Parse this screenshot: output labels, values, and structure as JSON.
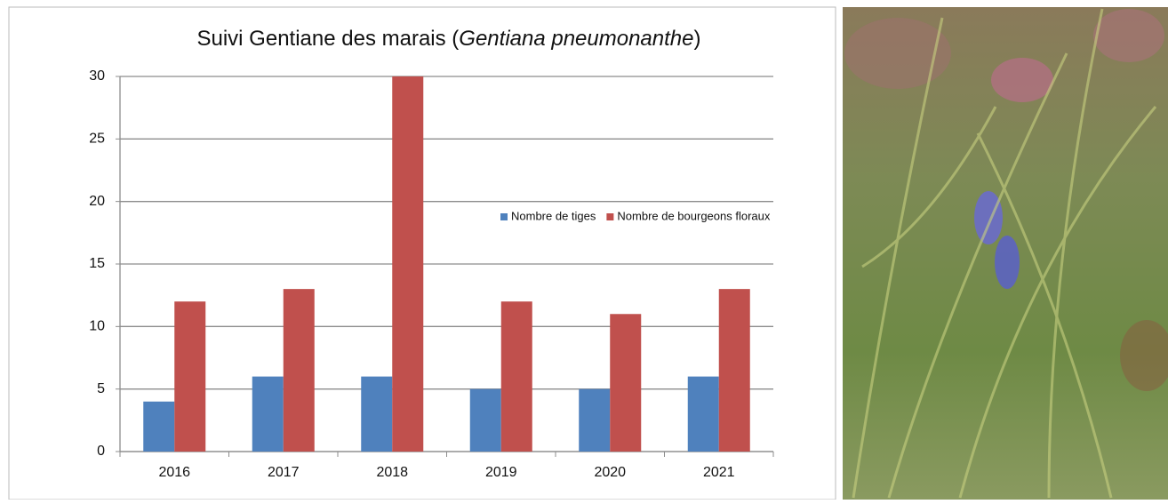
{
  "chart_data": {
    "type": "bar",
    "title": [
      "Suivi Gentiane des marais (",
      "Gentiana pneumonanthe",
      ")"
    ],
    "categories": [
      "2016",
      "2017",
      "2018",
      "2019",
      "2020",
      "2021"
    ],
    "series": [
      {
        "name": "Nombre de tiges",
        "color": "#4f81bd",
        "values": [
          4,
          6,
          6,
          5,
          5,
          6
        ]
      },
      {
        "name": "Nombre de bourgeons floraux",
        "color": "#c0504d",
        "values": [
          12,
          13,
          30,
          12,
          11,
          13
        ]
      }
    ],
    "ylim": [
      0,
      30
    ],
    "yticks": [
      0,
      5,
      10,
      15,
      20,
      25,
      30
    ],
    "grid": true,
    "legend": "right"
  }
}
